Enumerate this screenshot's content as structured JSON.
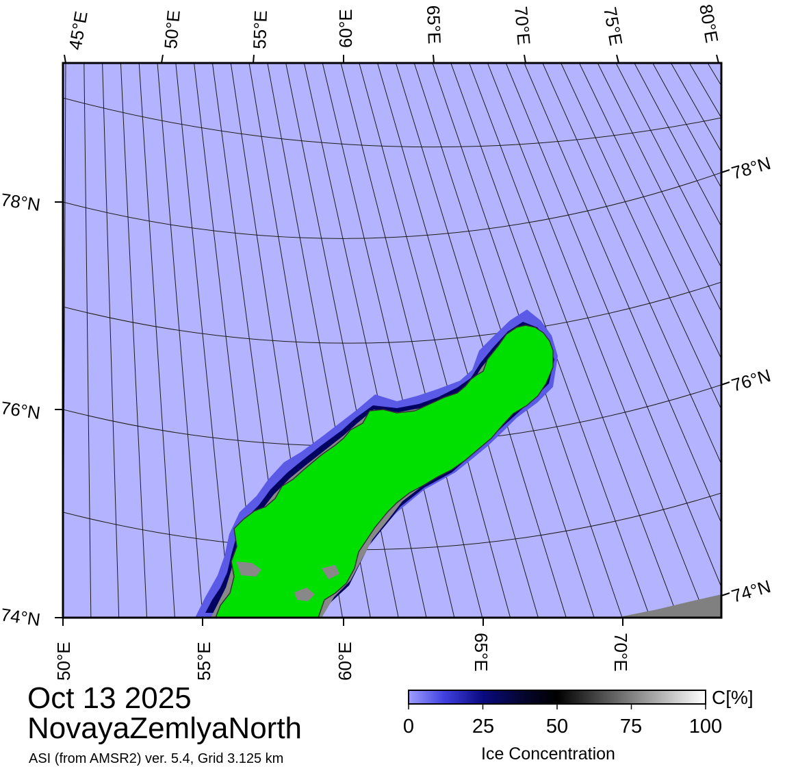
{
  "map": {
    "date": "Oct 13 2025",
    "region": "NovayaZemlyaNorth",
    "source": "ASI (from AMSR2) ver. 5.4,  Grid 3.125 km",
    "top_lon_labels": [
      "45°E",
      "50°E",
      "55°E",
      "60°E",
      "65°E",
      "70°E",
      "75°E",
      "80°E"
    ],
    "bottom_lon_labels": [
      "50°E",
      "55°E",
      "60°E",
      "65°E",
      "70°E"
    ],
    "left_lat_labels": [
      "78°N",
      "76°N",
      "74°N"
    ],
    "right_lat_labels": [
      "78°N",
      "76°N",
      "74°N"
    ],
    "colors": {
      "water": "#b3b3ff",
      "land": "#00e000",
      "coast_ice": "#888888",
      "low_ice": "#5a5ae6",
      "mid_ice": "#000060",
      "frame": "#000000",
      "graticule": "#1a1a1a"
    }
  },
  "colorbar": {
    "title": "Ice Concentration",
    "unit": "C[%]",
    "ticks": [
      "0",
      "25",
      "50",
      "75",
      "100"
    ],
    "range": [
      0,
      100
    ]
  }
}
